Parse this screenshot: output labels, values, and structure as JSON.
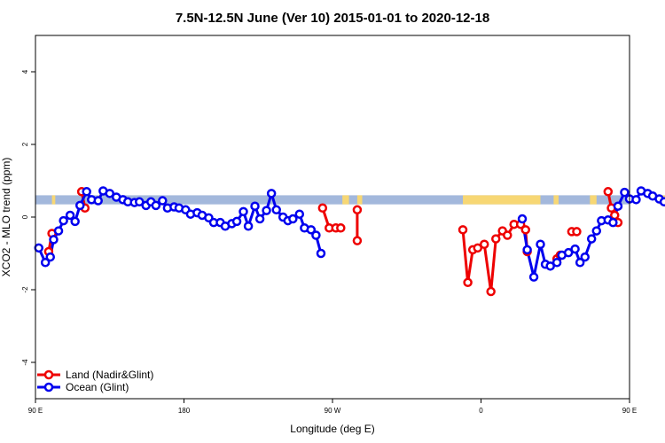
{
  "chart_data": {
    "type": "line",
    "title": "7.5N-12.5N June (Ver 10)   2015-01-01 to 2020-12-18",
    "xlabel": "Longitude (deg E)",
    "ylabel": "XCO2 - MLO trend (ppm)",
    "xlim": [
      90,
      450
    ],
    "ylim": [
      -5,
      5
    ],
    "x_ticks": [
      {
        "value": 90,
        "label": "90 E"
      },
      {
        "value": 180,
        "label": "180"
      },
      {
        "value": 270,
        "label": "90 W"
      },
      {
        "value": 360,
        "label": "0"
      },
      {
        "value": 450,
        "label": "90 E"
      },
      {
        "value": 540,
        "label": "180"
      }
    ],
    "y_ticks": [
      {
        "value": -4,
        "label": "-4"
      },
      {
        "value": -2,
        "label": "-2"
      },
      {
        "value": 0,
        "label": "0"
      },
      {
        "value": 2,
        "label": "2"
      },
      {
        "value": 4,
        "label": "4"
      }
    ],
    "grid": false,
    "legend_position": "bottom-left",
    "surface_strip": {
      "y_range": [
        0.35,
        0.6
      ],
      "ocean_color": "#a3b8dc",
      "land_color": "#f7d774",
      "land_segments": [
        [
          100,
          102
        ],
        [
          128,
          130
        ],
        [
          276,
          280
        ],
        [
          285,
          288
        ],
        [
          349,
          396
        ],
        [
          404,
          407
        ],
        [
          426,
          430
        ],
        [
          468,
          472
        ],
        [
          491,
          494
        ]
      ]
    },
    "series": [
      {
        "name": "Land (Nadir&Glint)",
        "color": "#ee0000",
        "segments": [
          [
            [
              98,
              -0.95
            ],
            [
              100,
              -0.45
            ]
          ],
          [
            [
              118,
              0.7
            ],
            [
              120,
              0.25
            ]
          ],
          [
            [
              264,
              0.25
            ],
            [
              268,
              -0.3
            ]
          ],
          [
            [
              272,
              -0.3
            ],
            [
              275,
              -0.3
            ]
          ],
          [
            [
              285,
              -0.65
            ],
            [
              285,
              0.2
            ]
          ],
          [
            [
              349,
              -0.35
            ],
            [
              352,
              -1.8
            ],
            [
              355,
              -0.9
            ],
            [
              358,
              -0.85
            ],
            [
              362,
              -0.75
            ],
            [
              366,
              -2.05
            ],
            [
              369,
              -0.6
            ],
            [
              373,
              -0.38
            ],
            [
              376,
              -0.5
            ],
            [
              380,
              -0.2
            ],
            [
              384,
              -0.2
            ],
            [
              387,
              -0.35
            ],
            [
              388,
              -0.95
            ]
          ],
          [
            [
              406,
              -1.15
            ],
            [
              408,
              -1.05
            ]
          ],
          [
            [
              415,
              -0.4
            ],
            [
              418,
              -0.4
            ]
          ],
          [
            [
              437,
              0.7
            ],
            [
              439,
              0.25
            ]
          ],
          [
            [
              441,
              0.05
            ],
            [
              443,
              -0.15
            ]
          ]
        ]
      },
      {
        "name": "Ocean (Glint)",
        "color": "#0000ee",
        "points": [
          [
            92,
            -0.85
          ],
          [
            96,
            -1.25
          ],
          [
            99,
            -1.1
          ],
          [
            101,
            -0.62
          ],
          [
            104,
            -0.38
          ],
          [
            107,
            -0.1
          ],
          [
            111,
            0.05
          ],
          [
            114,
            -0.12
          ],
          [
            117,
            0.32
          ],
          [
            121,
            0.7
          ],
          [
            124,
            0.48
          ],
          [
            128,
            0.45
          ],
          [
            131,
            0.72
          ],
          [
            135,
            0.65
          ],
          [
            139,
            0.55
          ],
          [
            143,
            0.48
          ],
          [
            146,
            0.42
          ],
          [
            150,
            0.4
          ],
          [
            153,
            0.42
          ],
          [
            157,
            0.32
          ],
          [
            160,
            0.42
          ],
          [
            163,
            0.32
          ],
          [
            167,
            0.45
          ],
          [
            170,
            0.25
          ],
          [
            174,
            0.28
          ],
          [
            177,
            0.25
          ],
          [
            181,
            0.2
          ],
          [
            184,
            0.08
          ],
          [
            188,
            0.12
          ],
          [
            191,
            0.05
          ],
          [
            195,
            -0.02
          ],
          [
            198,
            -0.15
          ],
          [
            202,
            -0.15
          ],
          [
            205,
            -0.25
          ],
          [
            209,
            -0.18
          ],
          [
            212,
            -0.12
          ],
          [
            216,
            0.15
          ],
          [
            219,
            -0.25
          ],
          [
            223,
            0.3
          ],
          [
            226,
            -0.05
          ],
          [
            230,
            0.18
          ],
          [
            233,
            0.65
          ],
          [
            236,
            0.2
          ],
          [
            240,
            0.0
          ],
          [
            243,
            -0.1
          ],
          [
            246,
            -0.05
          ],
          [
            250,
            0.08
          ],
          [
            253,
            -0.3
          ],
          [
            257,
            -0.35
          ],
          [
            260,
            -0.5
          ],
          [
            263,
            -1.0
          ],
          null,
          [
            385,
            -0.05
          ],
          [
            388,
            -0.9
          ],
          [
            392,
            -1.65
          ],
          [
            396,
            -0.75
          ],
          [
            399,
            -1.3
          ],
          [
            402,
            -1.35
          ],
          [
            406,
            -1.25
          ],
          [
            409,
            -1.05
          ],
          [
            413,
            -0.98
          ],
          [
            417,
            -0.88
          ],
          [
            420,
            -1.25
          ],
          [
            423,
            -1.1
          ],
          [
            427,
            -0.6
          ],
          [
            430,
            -0.38
          ],
          [
            433,
            -0.1
          ],
          [
            437,
            -0.08
          ],
          [
            440,
            -0.15
          ],
          [
            443,
            0.3
          ],
          [
            447,
            0.68
          ],
          [
            450,
            0.5
          ],
          [
            454,
            0.48
          ],
          [
            457,
            0.72
          ],
          [
            461,
            0.65
          ],
          [
            464,
            0.58
          ],
          [
            468,
            0.5
          ],
          [
            471,
            0.42
          ],
          [
            475,
            0.4
          ]
        ]
      }
    ]
  }
}
